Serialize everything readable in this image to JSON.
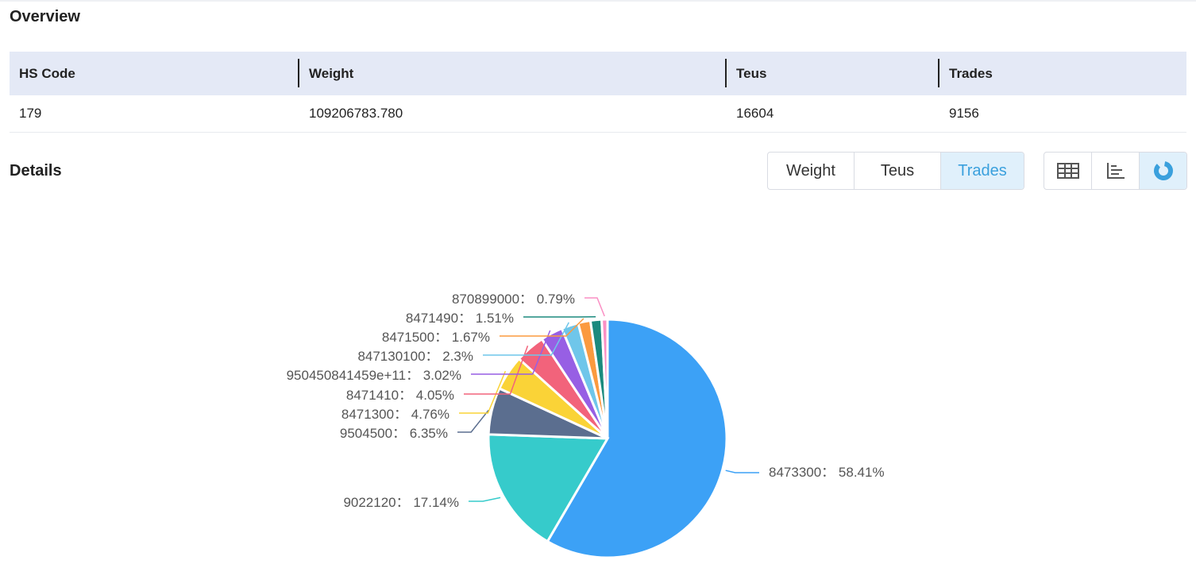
{
  "overview": {
    "title": "Overview",
    "headers": [
      "HS Code",
      "Weight",
      "Teus",
      "Trades"
    ],
    "row": [
      "179",
      "109206783.780",
      "16604",
      "9156"
    ]
  },
  "details": {
    "title": "Details",
    "metric_tabs": [
      "Weight",
      "Teus",
      "Trades"
    ],
    "active_metric": "Trades",
    "view_icons": [
      "table-view-icon",
      "bar-chart-view-icon",
      "pie-chart-view-icon"
    ],
    "active_view": "pie-chart-view-icon"
  },
  "colors": {
    "accent": "#3aa0dd",
    "header_bg": "#e4e9f6",
    "active_bg": "#e0f0fb"
  },
  "chart_data": {
    "type": "pie",
    "series": [
      {
        "values": [
          {
            "name": "8473300",
            "value": 58.41,
            "color": "#3ca1f6"
          },
          {
            "name": "9022120",
            "value": 17.14,
            "color": "#36cbcb"
          },
          {
            "name": "9504500",
            "value": 6.35,
            "color": "#5b6e8f"
          },
          {
            "name": "8471300",
            "value": 4.76,
            "color": "#fad337"
          },
          {
            "name": "8471410",
            "value": 4.05,
            "color": "#f2637b"
          },
          {
            "name": "950450841459e+11",
            "value": 3.02,
            "color": "#975fe4"
          },
          {
            "name": "847130100",
            "value": 2.3,
            "color": "#6fc6ea"
          },
          {
            "name": "8471500",
            "value": 1.67,
            "color": "#fb9a3f"
          },
          {
            "name": "8471490",
            "value": 1.51,
            "color": "#1b8a7e"
          },
          {
            "name": "870899000",
            "value": 0.79,
            "color": "#fa8fc4"
          }
        ]
      }
    ],
    "label_format": "{name}: {value}%"
  }
}
